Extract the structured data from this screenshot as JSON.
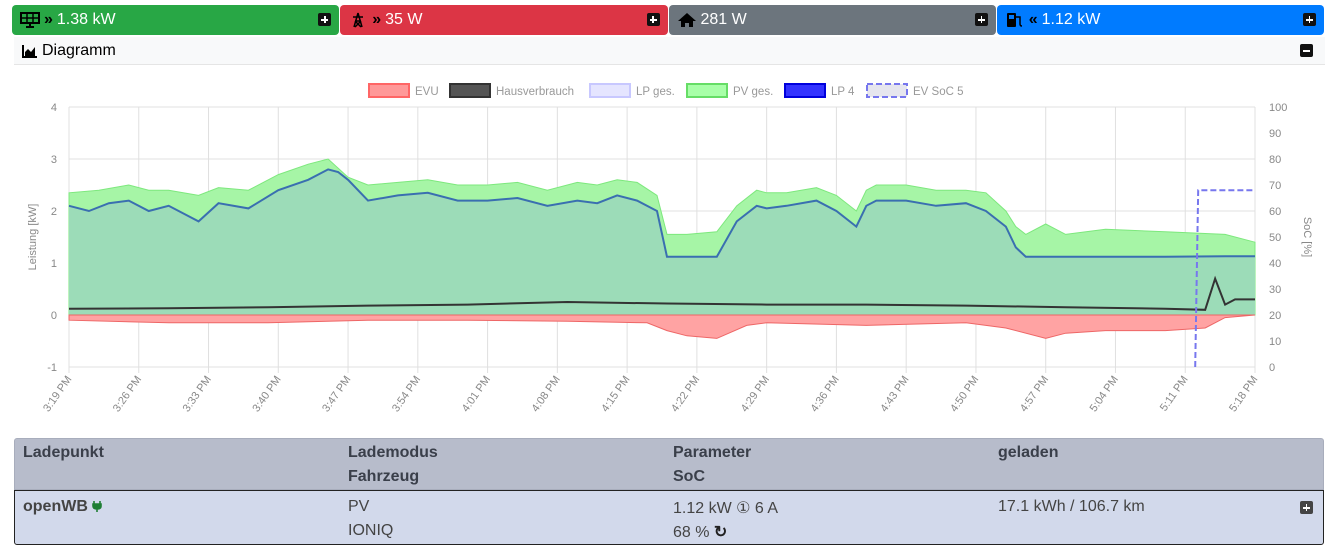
{
  "tiles": {
    "pv": {
      "value": "1.38 kW",
      "color": "#28a745",
      "icon": "solar-panel-icon"
    },
    "evu": {
      "value": "35 W",
      "color": "#dc3545",
      "icon": "power-pylon-icon"
    },
    "house": {
      "value": "281 W",
      "color": "#6c757d",
      "icon": "home-icon"
    },
    "lp": {
      "value": "1.12 kW",
      "color": "#007bff",
      "icon": "charging-station-icon"
    }
  },
  "diagram": {
    "title": "Diagramm"
  },
  "chart_data": {
    "type": "area",
    "legend": [
      {
        "label": "EVU",
        "color": "#ff9999"
      },
      {
        "label": "Hausverbrauch",
        "color": "#555555"
      },
      {
        "label": "LP ges.",
        "color": "#e5e5ff"
      },
      {
        "label": "PV ges.",
        "color": "#a8ffa8"
      },
      {
        "label": "LP 4",
        "color": "#3333ff"
      },
      {
        "label": "EV SoC 5",
        "color": "#6666ee"
      }
    ],
    "ylabel": "Leistung [kW]",
    "y2label": "SoC [%]",
    "ylim": [
      -1,
      4
    ],
    "y2lim": [
      0,
      100
    ],
    "yticks": [
      "4",
      "3",
      "2",
      "1",
      "0",
      "-1"
    ],
    "y2ticks": [
      "100",
      "90",
      "80",
      "70",
      "60",
      "50",
      "40",
      "30",
      "20",
      "10",
      "0"
    ],
    "xticks": [
      "3:19 PM",
      "3:26 PM",
      "3:33 PM",
      "3:40 PM",
      "3:47 PM",
      "3:54 PM",
      "4:01 PM",
      "4:08 PM",
      "4:15 PM",
      "4:22 PM",
      "4:29 PM",
      "4:36 PM",
      "4:43 PM",
      "4:50 PM",
      "4:57 PM",
      "5:04 PM",
      "5:11 PM",
      "5:18 PM"
    ],
    "x_minutes": [
      0,
      7,
      14,
      21,
      28,
      35,
      42,
      49,
      56,
      63,
      70,
      77,
      84,
      91,
      98,
      105,
      112,
      119
    ],
    "series": [
      {
        "name": "PV ges.",
        "x": [
          0,
          3,
          6,
          8,
          10,
          13,
          15,
          18,
          21,
          24,
          26,
          28,
          30,
          33,
          36,
          39,
          42,
          45,
          48,
          51,
          53,
          55,
          57,
          59,
          60,
          62,
          65,
          67,
          69,
          70,
          72,
          75,
          77,
          79,
          80,
          81,
          84,
          87,
          90,
          92,
          94,
          95,
          96,
          98,
          100,
          104,
          110,
          116,
          119
        ],
        "values": [
          2.35,
          2.4,
          2.5,
          2.4,
          2.4,
          2.3,
          2.45,
          2.4,
          2.7,
          2.9,
          3.0,
          2.65,
          2.5,
          2.55,
          2.6,
          2.5,
          2.5,
          2.55,
          2.4,
          2.55,
          2.5,
          2.6,
          2.55,
          2.3,
          1.55,
          1.55,
          1.6,
          2.1,
          2.4,
          2.35,
          2.35,
          2.45,
          2.3,
          2.0,
          2.4,
          2.5,
          2.5,
          2.4,
          2.4,
          2.35,
          2.0,
          1.7,
          1.55,
          1.75,
          1.55,
          1.65,
          1.6,
          1.55,
          1.4
        ]
      },
      {
        "name": "LP 4",
        "x": [
          0,
          2,
          4,
          6,
          8,
          10,
          13,
          15,
          18,
          21,
          24,
          26,
          27,
          28,
          30,
          33,
          36,
          39,
          42,
          45,
          48,
          51,
          53,
          55,
          57,
          59,
          60,
          62,
          65,
          67,
          69,
          70,
          72,
          75,
          77,
          79,
          80,
          81,
          84,
          87,
          90,
          92,
          94,
          95,
          96,
          98,
          104,
          110,
          116,
          119
        ],
        "values": [
          2.1,
          2.0,
          2.15,
          2.2,
          2.0,
          2.1,
          1.8,
          2.15,
          2.05,
          2.4,
          2.6,
          2.8,
          2.75,
          2.6,
          2.2,
          2.3,
          2.35,
          2.2,
          2.2,
          2.25,
          2.1,
          2.2,
          2.15,
          2.3,
          2.2,
          2.0,
          1.12,
          1.12,
          1.12,
          1.8,
          2.1,
          2.05,
          2.1,
          2.2,
          2.0,
          1.7,
          2.1,
          2.2,
          2.2,
          2.1,
          2.15,
          2.0,
          1.7,
          1.3,
          1.12,
          1.12,
          1.12,
          1.12,
          1.13,
          1.13
        ]
      },
      {
        "name": "Hausverbrauch",
        "x": [
          0,
          10,
          20,
          30,
          40,
          50,
          60,
          70,
          80,
          90,
          100,
          110,
          114,
          115,
          116,
          117,
          119
        ],
        "values": [
          0.12,
          0.13,
          0.15,
          0.18,
          0.2,
          0.25,
          0.22,
          0.2,
          0.2,
          0.18,
          0.15,
          0.12,
          0.1,
          0.7,
          0.2,
          0.3,
          0.3
        ]
      },
      {
        "name": "EVU",
        "x": [
          0,
          10,
          20,
          30,
          40,
          50,
          58,
          60,
          62,
          65,
          68,
          70,
          80,
          90,
          94,
          98,
          100,
          104,
          110,
          114,
          116,
          119
        ],
        "values": [
          -0.1,
          -0.15,
          -0.15,
          -0.1,
          -0.1,
          -0.12,
          -0.15,
          -0.3,
          -0.4,
          -0.45,
          -0.2,
          -0.15,
          -0.2,
          -0.15,
          -0.25,
          -0.45,
          -0.35,
          -0.3,
          -0.3,
          -0.25,
          -0.05,
          0.0
        ]
      },
      {
        "name": "EV SoC 5",
        "x": [
          113,
          113.3,
          119
        ],
        "values": [
          0,
          68,
          68
        ]
      }
    ]
  },
  "table": {
    "headers": {
      "col1": "Ladepunkt",
      "col2a": "Lademodus",
      "col2b": "Fahrzeug",
      "col3a": "Parameter",
      "col3b": "SoC",
      "col4": "geladen"
    },
    "row": {
      "name": "openWB",
      "mode": "PV",
      "vehicle": "IONIQ",
      "params": "1.12 kW ① 6 A",
      "soc": "68 %",
      "charged": "17.1 kWh / 106.7 km"
    }
  }
}
